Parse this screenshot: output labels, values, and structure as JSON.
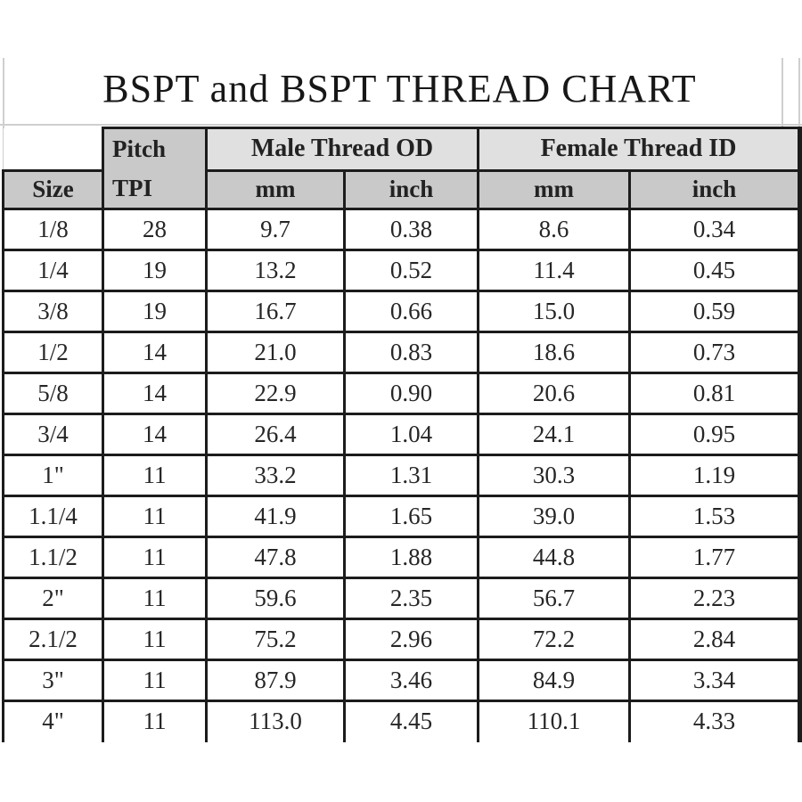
{
  "page": {
    "title": "BSPT and BSPT THREAD CHART"
  },
  "table": {
    "header": {
      "size_label": "Size",
      "pitch_line1": "Pitch",
      "pitch_line2": "TPI",
      "male_group": "Male Thread OD",
      "female_group": "Female Thread ID",
      "male_mm": "mm",
      "male_inch": "inch",
      "female_mm": "mm",
      "female_inch": "inch"
    },
    "rows": [
      {
        "size": "1/8",
        "tpi": "28",
        "male_mm": "9.7",
        "male_inch": "0.38",
        "female_mm": "8.6",
        "female_inch": "0.34"
      },
      {
        "size": "1/4",
        "tpi": "19",
        "male_mm": "13.2",
        "male_inch": "0.52",
        "female_mm": "11.4",
        "female_inch": "0.45"
      },
      {
        "size": "3/8",
        "tpi": "19",
        "male_mm": "16.7",
        "male_inch": "0.66",
        "female_mm": "15.0",
        "female_inch": "0.59"
      },
      {
        "size": "1/2",
        "tpi": "14",
        "male_mm": "21.0",
        "male_inch": "0.83",
        "female_mm": "18.6",
        "female_inch": "0.73"
      },
      {
        "size": "5/8",
        "tpi": "14",
        "male_mm": "22.9",
        "male_inch": "0.90",
        "female_mm": "20.6",
        "female_inch": "0.81"
      },
      {
        "size": "3/4",
        "tpi": "14",
        "male_mm": "26.4",
        "male_inch": "1.04",
        "female_mm": "24.1",
        "female_inch": "0.95"
      },
      {
        "size": "1\"",
        "tpi": "11",
        "male_mm": "33.2",
        "male_inch": "1.31",
        "female_mm": "30.3",
        "female_inch": "1.19"
      },
      {
        "size": "1.1/4",
        "tpi": "11",
        "male_mm": "41.9",
        "male_inch": "1.65",
        "female_mm": "39.0",
        "female_inch": "1.53"
      },
      {
        "size": "1.1/2",
        "tpi": "11",
        "male_mm": "47.8",
        "male_inch": "1.88",
        "female_mm": "44.8",
        "female_inch": "1.77"
      },
      {
        "size": "2\"",
        "tpi": "11",
        "male_mm": "59.6",
        "male_inch": "2.35",
        "female_mm": "56.7",
        "female_inch": "2.23"
      },
      {
        "size": "2.1/2",
        "tpi": "11",
        "male_mm": "75.2",
        "male_inch": "2.96",
        "female_mm": "72.2",
        "female_inch": "2.84"
      },
      {
        "size": "3\"",
        "tpi": "11",
        "male_mm": "87.9",
        "male_inch": "3.46",
        "female_mm": "84.9",
        "female_inch": "3.34"
      },
      {
        "size": "4\"",
        "tpi": "11",
        "male_mm": "113.0",
        "male_inch": "4.45",
        "female_mm": "110.1",
        "female_inch": "4.33"
      }
    ],
    "colors": {
      "group_header_fill": "#e0e0e0",
      "sub_header_fill": "#c9c9c9",
      "border": "#1c1c1c",
      "scan_rule": "#cfcfcf"
    }
  }
}
